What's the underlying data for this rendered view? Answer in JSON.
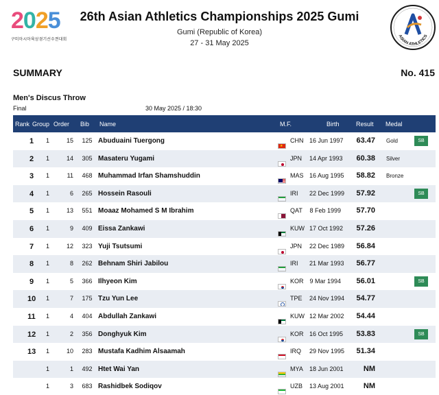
{
  "header": {
    "title": "26th Asian Athletics Championships 2025 Gumi",
    "location": "Gumi (Republic of Korea)",
    "dates": "27 - 31 May 2025",
    "logo_left": {
      "mark": [
        "2",
        "0",
        "2",
        "5"
      ],
      "sub": "구미아시아육상경기선수권대회"
    },
    "logo_right": "ASIAN ATHLETICS"
  },
  "doc": {
    "label": "SUMMARY",
    "number": "No. 415"
  },
  "event": {
    "name": "Men's Discus Throw",
    "round": "Final",
    "datetime": "30 May 2025 / 18:30"
  },
  "columns": [
    "Rank",
    "Group",
    "Order",
    "Bib",
    "Name",
    "M.F.",
    "Birth",
    "Result",
    "Medal"
  ],
  "rows": [
    {
      "rank": "1",
      "group": "1",
      "order": "15",
      "bib": "125",
      "name": "Abuduaini Tuergong",
      "flag": "chn-flag",
      "mf": "CHN",
      "birth": "16 Jun 1997",
      "result": "63.47",
      "medal": "Gold",
      "badge": "SB"
    },
    {
      "rank": "2",
      "group": "1",
      "order": "14",
      "bib": "305",
      "name": "Masateru Yugami",
      "flag": "jpn-flag",
      "mf": "JPN",
      "birth": "14 Apr 1993",
      "result": "60.38",
      "medal": "Silver",
      "badge": ""
    },
    {
      "rank": "3",
      "group": "1",
      "order": "11",
      "bib": "468",
      "name": "Muhammad Irfan Shamshuddin",
      "flag": "mas-flag",
      "mf": "MAS",
      "birth": "16 Aug 1995",
      "result": "58.82",
      "medal": "Bronze",
      "badge": ""
    },
    {
      "rank": "4",
      "group": "1",
      "order": "6",
      "bib": "265",
      "name": "Hossein Rasouli",
      "flag": "iri-flag",
      "mf": "IRI",
      "birth": "22 Dec 1999",
      "result": "57.92",
      "medal": "",
      "badge": "SB"
    },
    {
      "rank": "5",
      "group": "1",
      "order": "13",
      "bib": "551",
      "name": "Moaaz Mohamed S M Ibrahim",
      "flag": "qat-flag",
      "mf": "QAT",
      "birth": "8 Feb 1999",
      "result": "57.70",
      "medal": "",
      "badge": ""
    },
    {
      "rank": "6",
      "group": "1",
      "order": "9",
      "bib": "409",
      "name": "Eissa Zankawi",
      "flag": "kuw-flag",
      "mf": "KUW",
      "birth": "17 Oct 1992",
      "result": "57.26",
      "medal": "",
      "badge": ""
    },
    {
      "rank": "7",
      "group": "1",
      "order": "12",
      "bib": "323",
      "name": "Yuji Tsutsumi",
      "flag": "jpn-flag",
      "mf": "JPN",
      "birth": "22 Dec 1989",
      "result": "56.84",
      "medal": "",
      "badge": ""
    },
    {
      "rank": "8",
      "group": "1",
      "order": "8",
      "bib": "262",
      "name": "Behnam Shiri Jabilou",
      "flag": "iri-flag",
      "mf": "IRI",
      "birth": "21 Mar 1993",
      "result": "56.77",
      "medal": "",
      "badge": ""
    },
    {
      "rank": "9",
      "group": "1",
      "order": "5",
      "bib": "366",
      "name": "Ilhyeon Kim",
      "flag": "kor-flag",
      "mf": "KOR",
      "birth": "9 Mar 1994",
      "result": "56.01",
      "medal": "",
      "badge": "SB"
    },
    {
      "rank": "10",
      "group": "1",
      "order": "7",
      "bib": "175",
      "name": "Tzu Yun Lee",
      "flag": "tpe-flag",
      "mf": "TPE",
      "birth": "24 Nov 1994",
      "result": "54.77",
      "medal": "",
      "badge": ""
    },
    {
      "rank": "11",
      "group": "1",
      "order": "4",
      "bib": "404",
      "name": "Abdullah Zankawi",
      "flag": "kuw-flag",
      "mf": "KUW",
      "birth": "12 Mar 2002",
      "result": "54.44",
      "medal": "",
      "badge": ""
    },
    {
      "rank": "12",
      "group": "1",
      "order": "2",
      "bib": "356",
      "name": "Donghyuk Kim",
      "flag": "kor-flag",
      "mf": "KOR",
      "birth": "16 Oct 1995",
      "result": "53.83",
      "medal": "",
      "badge": "SB"
    },
    {
      "rank": "13",
      "group": "1",
      "order": "10",
      "bib": "283",
      "name": "Mustafa Kadhim Alsaamah",
      "flag": "irq-flag",
      "mf": "IRQ",
      "birth": "29 Nov 1995",
      "result": "51.34",
      "medal": "",
      "badge": ""
    },
    {
      "rank": "",
      "group": "1",
      "order": "1",
      "bib": "492",
      "name": "Htet Wai Yan",
      "flag": "mya-flag",
      "mf": "MYA",
      "birth": "18 Jun 2001",
      "result": "NM",
      "medal": "",
      "badge": ""
    },
    {
      "rank": "",
      "group": "1",
      "order": "3",
      "bib": "683",
      "name": "Rashidbek Sodiqov",
      "flag": "uzb-flag",
      "mf": "UZB",
      "birth": "13 Aug 2001",
      "result": "NM",
      "medal": "",
      "badge": ""
    }
  ],
  "colors": {
    "header_bg": "#1f3f74",
    "row_alt": "#e9edf3",
    "badge_bg": "#2e8b57"
  }
}
